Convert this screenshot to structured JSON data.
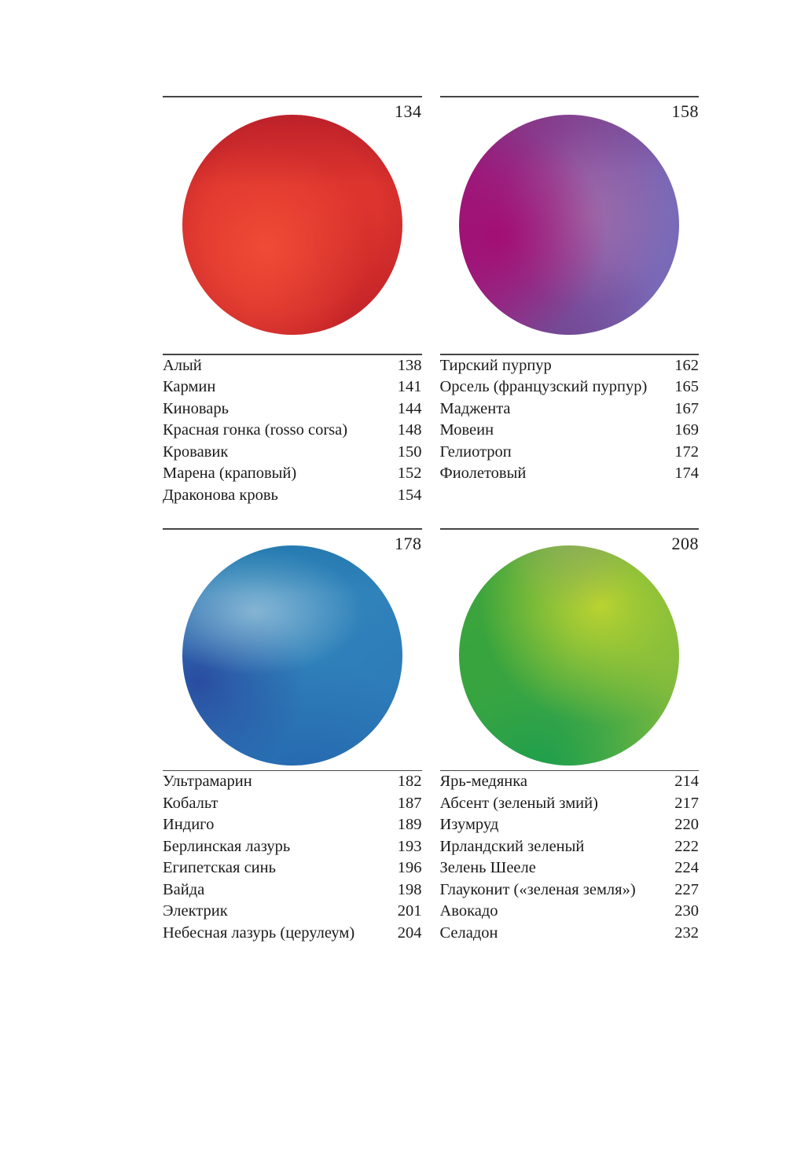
{
  "colors": {
    "background": "#ffffff",
    "text": "#1b1b1b",
    "rule": "#454545"
  },
  "sections": [
    {
      "id": "red",
      "page_number": "134",
      "circle_colors": {
        "hi": "rgba(240,76,54,0.95)",
        "dark-top": "rgba(167,21,39,0.55)",
        "dark-br": "rgba(183,27,37,0.5)",
        "base": "#dd342e",
        "edge": "#c0242a"
      },
      "entries": [
        {
          "label": "Алый",
          "page": "138"
        },
        {
          "label": "Кармин",
          "page": "141"
        },
        {
          "label": "Киноварь",
          "page": "144"
        },
        {
          "label": "Красная гонка (rosso corsa)",
          "page": "148"
        },
        {
          "label": "Кровавик",
          "page": "150"
        },
        {
          "label": "Марена (краповый)",
          "page": "152"
        },
        {
          "label": "Драконова кровь",
          "page": "154"
        }
      ]
    },
    {
      "id": "purple",
      "page_number": "158",
      "circle_colors": {
        "left": "#97217f",
        "mid": "#8b4f9e",
        "right": "#7969b7",
        "deep": "rgba(166,8,112,0.85)",
        "glow": "rgba(189,141,178,0.4)",
        "bottom-shade": "rgba(86,60,132,0.5)",
        "top-shade": "rgba(112,58,126,0.35)"
      },
      "entries": [
        {
          "label": "Тирский пурпур",
          "page": "162"
        },
        {
          "label": "Орсель (французский пурпур)",
          "page": "165"
        },
        {
          "label": "Маджента",
          "page": "167"
        },
        {
          "label": "Мовеин",
          "page": "169"
        },
        {
          "label": "Гелиотроп",
          "page": "172"
        },
        {
          "label": "Фиолетовый",
          "page": "174"
        }
      ]
    },
    {
      "id": "blue",
      "page_number": "178",
      "circle_colors": {
        "base": "#3389bd",
        "base2": "#2b76b6",
        "light": "rgba(148,190,216,0.85)",
        "indigo": "rgba(41,70,158,0.9)",
        "navy": "rgba(30,86,166,0.55)",
        "top-shade": "rgba(16,100,158,0.4)"
      },
      "entries": [
        {
          "label": "Ультрамарин",
          "page": "182"
        },
        {
          "label": "Кобальт",
          "page": "187"
        },
        {
          "label": "Индиго",
          "page": "189"
        },
        {
          "label": "Берлинская лазурь",
          "page": "193"
        },
        {
          "label": "Египетская синь",
          "page": "196"
        },
        {
          "label": "Вайда",
          "page": "198"
        },
        {
          "label": "Электрик",
          "page": "201"
        },
        {
          "label": "Небесная лазурь (церулеум)",
          "page": "204"
        }
      ]
    },
    {
      "id": "green",
      "page_number": "208",
      "circle_colors": {
        "chartreuse": "rgba(191,213,48,0.95)",
        "olive": "rgba(148,168,100,0.75)",
        "side": "rgba(52,163,60,0.85)",
        "emerald": "rgba(18,156,78,0.85)",
        "green": "#44a63f",
        "mid": "#56ab41",
        "yellow-green": "#8fc03d"
      },
      "entries": [
        {
          "label": "Ярь-медянка",
          "page": "214"
        },
        {
          "label": "Абсент (зеленый змий)",
          "page": "217"
        },
        {
          "label": "Изумруд",
          "page": "220"
        },
        {
          "label": "Ирландский зеленый",
          "page": "222"
        },
        {
          "label": "Зелень Шееле",
          "page": "224"
        },
        {
          "label": "Глауконит («зеленая земля»)",
          "page": "227"
        },
        {
          "label": "Авокадо",
          "page": "230"
        },
        {
          "label": "Селадон",
          "page": "232"
        }
      ]
    }
  ]
}
